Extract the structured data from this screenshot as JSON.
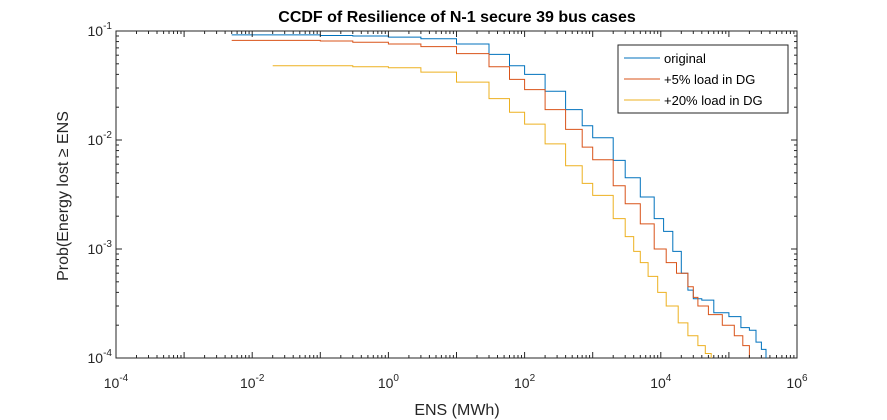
{
  "chart_data": {
    "type": "line",
    "title": "CCDF of Resilience of N-1 secure 39 bus cases",
    "xlabel": "ENS (MWh)",
    "ylabel": "Prob(Energy lost ≥ ENS",
    "xscale": "log",
    "yscale": "log",
    "xlim": [
      0.0001,
      1000000
    ],
    "ylim": [
      0.0001,
      0.1
    ],
    "x_tick_labels": [
      {
        "value": 0.0001,
        "base": "10",
        "exp": "-4"
      },
      {
        "value": 0.01,
        "base": "10",
        "exp": "-2"
      },
      {
        "value": 1,
        "base": "10",
        "exp": "0"
      },
      {
        "value": 100,
        "base": "10",
        "exp": "2"
      },
      {
        "value": 10000,
        "base": "10",
        "exp": "4"
      },
      {
        "value": 1000000,
        "base": "10",
        "exp": "6"
      }
    ],
    "y_tick_labels": [
      {
        "value": 0.1,
        "base": "10",
        "exp": "-1"
      },
      {
        "value": 0.01,
        "base": "10",
        "exp": "-2"
      },
      {
        "value": 0.001,
        "base": "10",
        "exp": "-3"
      },
      {
        "value": 0.0001,
        "base": "10",
        "exp": "-4"
      }
    ],
    "grid": false,
    "legend_position": "top-right",
    "series": [
      {
        "name": "original",
        "color": "#0072BD",
        "points": [
          [
            0.005,
            0.092
          ],
          [
            0.03,
            0.092
          ],
          [
            0.1,
            0.091
          ],
          [
            0.3,
            0.09
          ],
          [
            1,
            0.088
          ],
          [
            3,
            0.085
          ],
          [
            10,
            0.076
          ],
          [
            30,
            0.061
          ],
          [
            60,
            0.048
          ],
          [
            100,
            0.04
          ],
          [
            200,
            0.028
          ],
          [
            400,
            0.019
          ],
          [
            700,
            0.0135
          ],
          [
            1000,
            0.0105
          ],
          [
            2000,
            0.0065
          ],
          [
            3000,
            0.0045
          ],
          [
            5000,
            0.003
          ],
          [
            8000,
            0.0019
          ],
          [
            11000,
            0.00145
          ],
          [
            15000,
            0.00095
          ],
          [
            20000,
            0.0006
          ],
          [
            25000,
            0.00042
          ],
          [
            30000,
            0.00035
          ],
          [
            40000,
            0.00034
          ],
          [
            60000,
            0.00026
          ],
          [
            100000,
            0.00024
          ],
          [
            150000,
            0.00019
          ],
          [
            200000,
            0.00018
          ],
          [
            250000,
            0.00014
          ],
          [
            300000,
            0.00012
          ],
          [
            350000,
            0.0001
          ]
        ]
      },
      {
        "name": "+5% load in DG",
        "color": "#D95319",
        "points": [
          [
            0.005,
            0.082
          ],
          [
            0.03,
            0.082
          ],
          [
            0.1,
            0.081
          ],
          [
            0.3,
            0.079
          ],
          [
            1,
            0.076
          ],
          [
            3,
            0.072
          ],
          [
            10,
            0.062
          ],
          [
            30,
            0.047
          ],
          [
            60,
            0.036
          ],
          [
            100,
            0.029
          ],
          [
            200,
            0.019
          ],
          [
            400,
            0.0125
          ],
          [
            700,
            0.0086
          ],
          [
            1000,
            0.0066
          ],
          [
            2000,
            0.0038
          ],
          [
            3000,
            0.0026
          ],
          [
            5000,
            0.0017
          ],
          [
            8000,
            0.001
          ],
          [
            12000,
            0.00075
          ],
          [
            17000,
            0.0006
          ],
          [
            25000,
            0.00045
          ],
          [
            30000,
            0.00036
          ],
          [
            35000,
            0.0003
          ],
          [
            50000,
            0.00025
          ],
          [
            80000,
            0.0002
          ],
          [
            120000,
            0.00016
          ],
          [
            160000,
            0.00013
          ],
          [
            200000,
            0.0001
          ]
        ]
      },
      {
        "name": "+20% load in DG",
        "color": "#EDB120",
        "points": [
          [
            0.02,
            0.048
          ],
          [
            0.1,
            0.048
          ],
          [
            0.3,
            0.047
          ],
          [
            1,
            0.046
          ],
          [
            3,
            0.042
          ],
          [
            10,
            0.034
          ],
          [
            30,
            0.024
          ],
          [
            60,
            0.018
          ],
          [
            100,
            0.014
          ],
          [
            200,
            0.0092
          ],
          [
            400,
            0.0058
          ],
          [
            700,
            0.004
          ],
          [
            1000,
            0.0031
          ],
          [
            2000,
            0.0019
          ],
          [
            3000,
            0.0013
          ],
          [
            4000,
            0.00095
          ],
          [
            5000,
            0.00075
          ],
          [
            6500,
            0.00056
          ],
          [
            9000,
            0.0004
          ],
          [
            12000,
            0.0003
          ],
          [
            18000,
            0.00021
          ],
          [
            25000,
            0.00016
          ],
          [
            35000,
            0.00013
          ],
          [
            45000,
            0.00011
          ],
          [
            55000,
            0.0001
          ]
        ]
      }
    ]
  }
}
